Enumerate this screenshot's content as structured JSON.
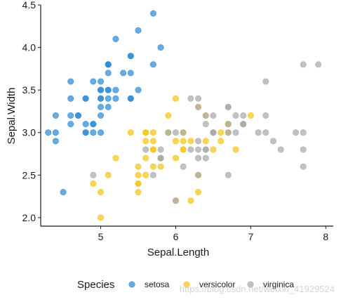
{
  "chart_data": {
    "type": "scatter",
    "xlabel": "Sepal.Length",
    "ylabel": "Sepal.Width",
    "xlim": [
      4.2,
      8.1
    ],
    "ylim": [
      1.9,
      4.5
    ],
    "xticks": [
      "5",
      "6",
      "7",
      "8"
    ],
    "yticks": [
      "2.0",
      "2.5",
      "3.0",
      "3.5",
      "4.0",
      "4.5"
    ],
    "grid": false,
    "legend": {
      "title": "Species",
      "position": "bottom",
      "entries": [
        "setosa",
        "versicolor",
        "virginica"
      ]
    },
    "colors": {
      "setosa": "#2e8bd6",
      "versicolor": "#f5c518",
      "virginica": "#a9a9a9"
    },
    "series": [
      {
        "name": "setosa",
        "x": [
          5.1,
          4.9,
          4.7,
          4.6,
          5.0,
          5.4,
          4.6,
          5.0,
          4.4,
          4.9,
          5.4,
          4.8,
          4.8,
          4.3,
          5.8,
          5.7,
          5.4,
          5.1,
          5.7,
          5.1,
          5.4,
          5.1,
          4.6,
          5.1,
          4.8,
          5.0,
          5.0,
          5.2,
          5.2,
          4.7,
          4.8,
          5.4,
          5.2,
          5.5,
          4.9,
          5.0,
          5.5,
          4.9,
          4.4,
          5.1,
          5.0,
          4.5,
          4.4,
          5.0,
          5.1,
          4.8,
          5.1,
          4.6,
          5.3,
          5.0
        ],
        "y": [
          3.5,
          3.0,
          3.2,
          3.1,
          3.6,
          3.9,
          3.4,
          3.4,
          2.9,
          3.1,
          3.7,
          3.4,
          3.0,
          3.0,
          4.0,
          4.4,
          3.9,
          3.5,
          3.8,
          3.8,
          3.4,
          3.7,
          3.6,
          3.3,
          3.4,
          3.0,
          3.4,
          3.5,
          3.4,
          3.2,
          3.1,
          3.4,
          4.1,
          4.2,
          3.1,
          3.2,
          3.5,
          3.6,
          3.0,
          3.4,
          3.5,
          2.3,
          3.2,
          3.5,
          3.8,
          3.0,
          3.8,
          3.2,
          3.7,
          3.3
        ]
      },
      {
        "name": "versicolor",
        "x": [
          7.0,
          6.4,
          6.9,
          5.5,
          6.5,
          5.7,
          6.3,
          4.9,
          6.6,
          5.2,
          5.0,
          5.9,
          6.0,
          6.1,
          5.6,
          6.7,
          5.6,
          5.8,
          6.2,
          5.6,
          5.9,
          6.1,
          6.3,
          6.1,
          6.4,
          6.6,
          6.8,
          6.7,
          6.0,
          5.7,
          5.5,
          5.5,
          5.8,
          6.0,
          5.4,
          6.0,
          6.7,
          6.3,
          5.6,
          5.5,
          5.5,
          6.1,
          5.8,
          5.0,
          5.6,
          5.7,
          5.7,
          6.2,
          5.1,
          5.7
        ],
        "y": [
          3.2,
          3.2,
          3.1,
          2.3,
          2.8,
          2.8,
          3.3,
          2.4,
          2.9,
          2.7,
          2.0,
          3.0,
          2.2,
          2.9,
          2.9,
          3.1,
          3.0,
          2.7,
          2.2,
          2.5,
          3.2,
          2.8,
          2.5,
          2.8,
          2.9,
          3.0,
          2.8,
          3.0,
          2.9,
          2.6,
          2.4,
          2.4,
          2.7,
          2.7,
          3.0,
          3.4,
          3.1,
          2.3,
          3.0,
          2.5,
          2.6,
          3.0,
          2.6,
          2.3,
          2.7,
          3.0,
          2.9,
          2.9,
          2.5,
          2.8
        ]
      },
      {
        "name": "virginica",
        "x": [
          6.3,
          5.8,
          7.1,
          6.3,
          6.5,
          7.6,
          4.9,
          7.3,
          6.7,
          7.2,
          6.5,
          6.4,
          6.8,
          5.7,
          5.8,
          6.4,
          6.5,
          7.7,
          7.7,
          6.0,
          6.9,
          5.6,
          7.7,
          6.3,
          6.7,
          7.2,
          6.2,
          6.1,
          6.4,
          7.2,
          7.4,
          7.9,
          6.4,
          6.3,
          6.1,
          7.7,
          6.3,
          6.4,
          6.0,
          6.9,
          6.7,
          6.9,
          5.8,
          6.8,
          6.7,
          6.7,
          6.3,
          6.5,
          6.2,
          5.9
        ],
        "y": [
          3.3,
          2.7,
          3.0,
          2.9,
          3.0,
          3.0,
          2.5,
          2.9,
          2.5,
          3.6,
          3.2,
          2.7,
          3.0,
          2.5,
          2.8,
          3.2,
          3.0,
          3.8,
          2.6,
          2.2,
          3.2,
          2.8,
          2.8,
          2.7,
          3.3,
          3.2,
          2.8,
          3.0,
          2.8,
          3.0,
          2.8,
          3.8,
          2.8,
          2.8,
          2.6,
          3.0,
          3.4,
          3.1,
          3.0,
          3.1,
          3.1,
          3.1,
          2.7,
          3.2,
          3.3,
          3.0,
          2.5,
          3.0,
          3.4,
          3.0
        ]
      }
    ]
  },
  "watermark": "https://blog.csdn.net/weixin_41929524"
}
